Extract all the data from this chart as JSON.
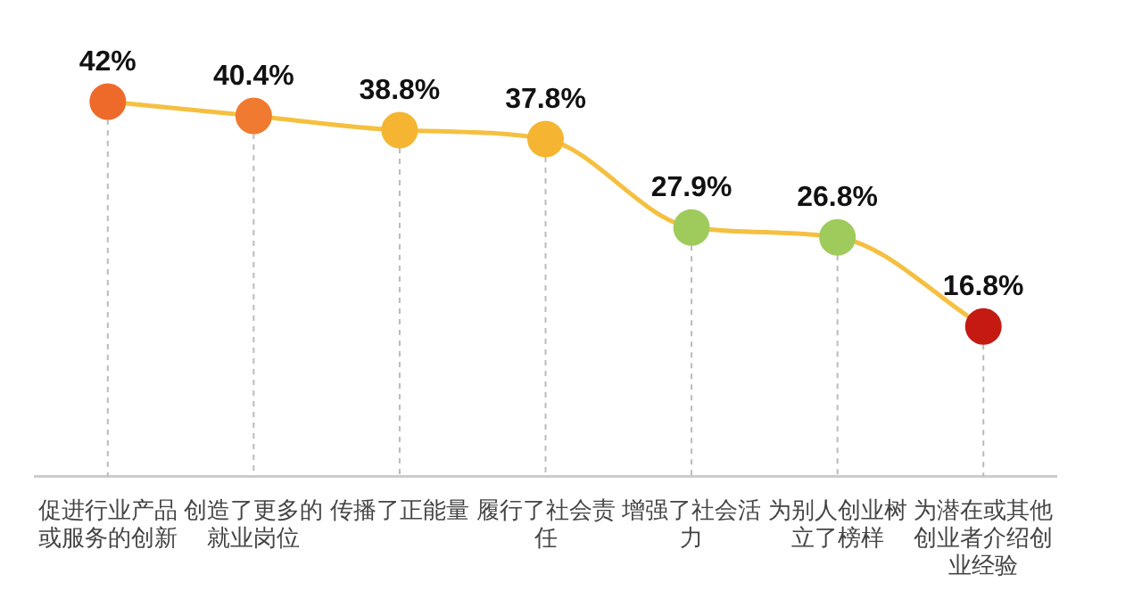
{
  "chart_data": {
    "type": "line",
    "categories": [
      "促进行业产品或服务的创新",
      "创造了更多的就业岗位",
      "传播了正能量",
      "履行了社会责任",
      "增强了社会活力",
      "为别人创业树立了榜样",
      "为潜在或其他创业者介绍创业经验"
    ],
    "series": [
      {
        "color": "#f5c040",
        "values": [
          42,
          40.4,
          38.8,
          37.8,
          27.9,
          26.8,
          16.8
        ],
        "colors": [
          "#ee6a2a",
          "#ef7a30",
          "#f5b532",
          "#f5b532",
          "#9fcb5c",
          "#9fcb5c",
          "#c41a12"
        ],
        "value_labels": [
          "42%",
          "40.4%",
          "38.8%",
          "37.8%",
          "27.9%",
          "26.8%",
          "16.8%"
        ]
      }
    ],
    "marker": "circle",
    "legend": false,
    "grid": "x"
  }
}
